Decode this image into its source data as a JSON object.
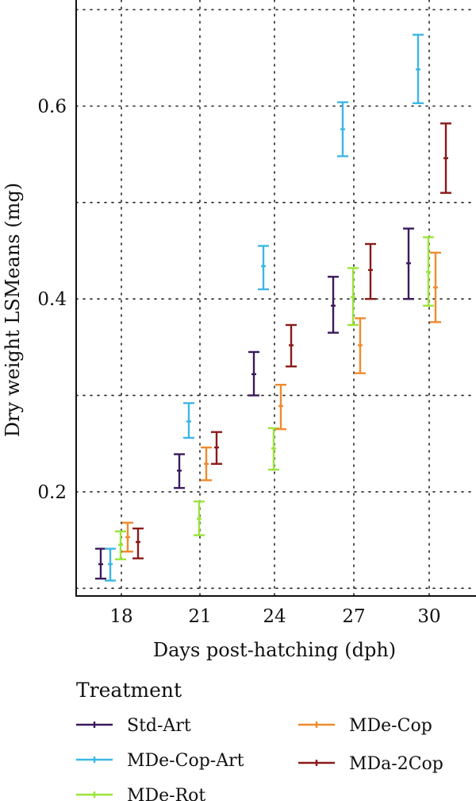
{
  "chart_data": {
    "type": "scatter",
    "style": "point-with-error-bars",
    "xlabel": "Days post-hatching (dph)",
    "ylabel": "Dry weight LSMeans (mg)",
    "categories": [
      "18",
      "21",
      "24",
      "27",
      "30"
    ],
    "x_tick_labels": [
      "18",
      "21",
      "24",
      "27",
      "30"
    ],
    "y_tick_labels": [
      "0.2",
      "0.4",
      "0.6"
    ],
    "ylim": [
      0.092,
      0.71
    ],
    "y_major_ticks": [
      0.2,
      0.4,
      0.6
    ],
    "y_grid_lines": [
      0.1,
      0.2,
      0.3,
      0.4,
      0.5,
      0.6,
      0.7
    ],
    "grid": true,
    "grid_style": "dotted",
    "legend": {
      "title": "Treatment",
      "placement": "bottom"
    },
    "series": [
      {
        "name": "Std-Art",
        "color": "#3a1a5c",
        "mean": [
          0.125,
          0.222,
          0.322,
          0.393,
          0.437
        ],
        "lower": [
          0.11,
          0.204,
          0.3,
          0.365,
          0.4
        ],
        "upper": [
          0.141,
          0.239,
          0.345,
          0.423,
          0.473
        ]
      },
      {
        "name": "MDe-Cop-Art",
        "color": "#3db7e4",
        "mean": [
          0.125,
          0.273,
          0.434,
          0.576,
          0.638
        ],
        "lower": [
          0.108,
          0.256,
          0.41,
          0.548,
          0.603
        ],
        "upper": [
          0.141,
          0.292,
          0.455,
          0.604,
          0.674
        ]
      },
      {
        "name": "MDe-Rot",
        "color": "#9be43a",
        "mean": [
          0.145,
          0.172,
          0.245,
          0.402,
          0.428
        ],
        "lower": [
          0.13,
          0.155,
          0.223,
          0.373,
          0.393
        ],
        "upper": [
          0.159,
          0.19,
          0.266,
          0.432,
          0.464
        ]
      },
      {
        "name": "MDe-Cop",
        "color": "#f08a2e",
        "mean": [
          0.153,
          0.229,
          0.289,
          0.352,
          0.412
        ],
        "lower": [
          0.138,
          0.212,
          0.265,
          0.323,
          0.376
        ],
        "upper": [
          0.168,
          0.246,
          0.311,
          0.38,
          0.448
        ]
      },
      {
        "name": "MDa-2Cop",
        "color": "#8b1a1a",
        "mean": [
          0.148,
          0.246,
          0.352,
          0.43,
          0.546
        ],
        "lower": [
          0.131,
          0.229,
          0.33,
          0.4,
          0.51
        ],
        "upper": [
          0.162,
          0.262,
          0.373,
          0.457,
          0.582
        ]
      }
    ]
  }
}
